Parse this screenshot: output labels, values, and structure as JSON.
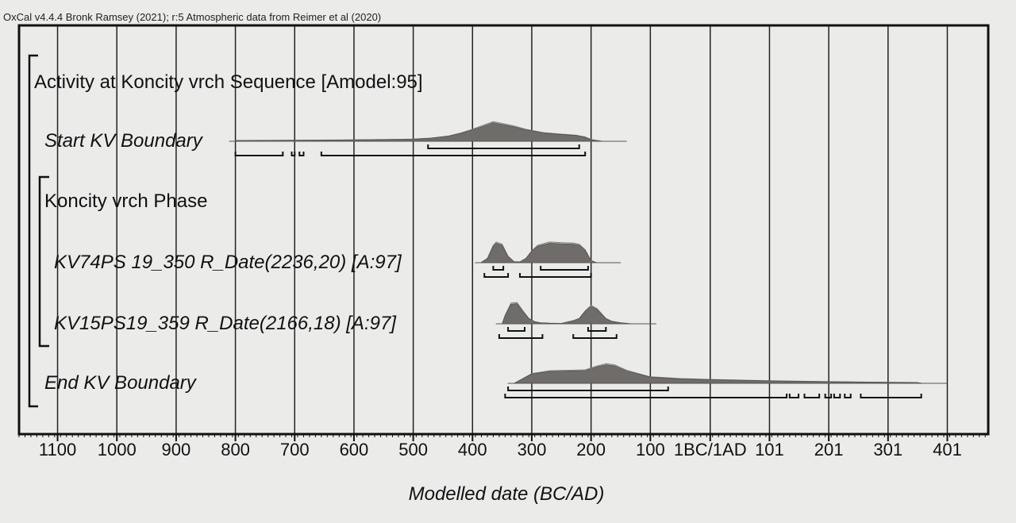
{
  "header": "OxCal v4.4.4 Bronk Ramsey (2021); r:5 Atmospheric data from Reimer et al (2020)",
  "chart_data": {
    "type": "area",
    "xlabel": "Modelled date (BC/AD)",
    "ylabel": "",
    "xlim": [
      -1165,
      470
    ],
    "tick_values": [
      -1100,
      -1000,
      -900,
      -800,
      -700,
      -600,
      -500,
      -400,
      -300,
      -200,
      -100,
      1,
      101,
      201,
      301,
      401
    ],
    "tick_labels": [
      "1100",
      "1000",
      "900",
      "800",
      "700",
      "600",
      "500",
      "400",
      "300",
      "200",
      "100",
      "1BC/1AD",
      "101",
      "201",
      "301",
      "401"
    ],
    "grid": true,
    "rows": [
      {
        "label": "Activity at Koncity vrch Sequence [Amodel:95]",
        "italic": false,
        "kind": "sequence"
      },
      {
        "label": "Start KV Boundary",
        "italic": true,
        "kind": "boundary",
        "x": [
          -800,
          -700,
          -600,
          -500,
          -470,
          -440,
          -420,
          -400,
          -380,
          -365,
          -350,
          -330,
          -310,
          -280,
          -250,
          -225,
          -210,
          -200,
          -180
        ],
        "density": [
          0.04,
          0.05,
          0.07,
          0.1,
          0.15,
          0.25,
          0.38,
          0.55,
          0.75,
          0.9,
          0.82,
          0.7,
          0.55,
          0.4,
          0.33,
          0.28,
          0.2,
          0.08,
          0.0
        ],
        "ranges_68": [
          [
            -475,
            -220
          ]
        ],
        "ranges_95": [
          [
            -800,
            -720
          ],
          [
            -705,
            -700
          ],
          [
            -692,
            -685
          ],
          [
            -655,
            -210
          ]
        ]
      },
      {
        "label": "Koncity vrch Phase",
        "italic": false,
        "kind": "phase"
      },
      {
        "label": "KV74PS 19_350 R_Date(2236,20) [A:97]",
        "italic": true,
        "kind": "date",
        "x": [
          -385,
          -375,
          -365,
          -360,
          -350,
          -340,
          -330,
          -320,
          -310,
          -300,
          -290,
          -270,
          -250,
          -230,
          -220,
          -210,
          -200,
          -190
        ],
        "density": [
          0.02,
          0.2,
          0.8,
          0.95,
          0.85,
          0.3,
          0.05,
          0.04,
          0.2,
          0.55,
          0.8,
          0.95,
          0.92,
          0.9,
          0.85,
          0.6,
          0.1,
          0.0
        ],
        "ranges_68": [
          [
            -365,
            -348
          ],
          [
            -285,
            -205
          ]
        ],
        "ranges_95": [
          [
            -380,
            -340
          ],
          [
            -320,
            -200
          ]
        ]
      },
      {
        "label": "KV15PS19_359 R_Date(2166,18) [A:97]",
        "italic": true,
        "kind": "date",
        "x": [
          -350,
          -345,
          -335,
          -325,
          -315,
          -305,
          -295,
          -285,
          -270,
          -250,
          -230,
          -220,
          -210,
          -200,
          -190,
          -175,
          -165,
          -150,
          -130
        ],
        "density": [
          0.0,
          0.4,
          0.95,
          0.98,
          0.6,
          0.25,
          0.1,
          0.05,
          0.03,
          0.02,
          0.15,
          0.25,
          0.6,
          0.85,
          0.7,
          0.25,
          0.12,
          0.05,
          0.0
        ],
        "ranges_68": [
          [
            -340,
            -312
          ],
          [
            -205,
            -175
          ]
        ],
        "ranges_95": [
          [
            -355,
            -282
          ],
          [
            -230,
            -157
          ]
        ]
      },
      {
        "label": "End KV Boundary",
        "italic": true,
        "kind": "boundary",
        "x": [
          -330,
          -300,
          -270,
          -240,
          -210,
          -190,
          -175,
          -160,
          -140,
          -100,
          -50,
          0,
          100,
          200,
          300,
          350,
          360
        ],
        "density": [
          0.0,
          0.45,
          0.58,
          0.6,
          0.62,
          0.8,
          0.9,
          0.85,
          0.6,
          0.3,
          0.22,
          0.18,
          0.12,
          0.08,
          0.05,
          0.04,
          0.0
        ],
        "ranges_68": [
          [
            -340,
            -70
          ]
        ],
        "ranges_95": [
          [
            -345,
            130
          ],
          [
            135,
            150
          ],
          [
            160,
            185
          ],
          [
            195,
            205
          ],
          [
            210,
            220
          ],
          [
            228,
            238
          ],
          [
            255,
            357
          ]
        ]
      }
    ]
  }
}
